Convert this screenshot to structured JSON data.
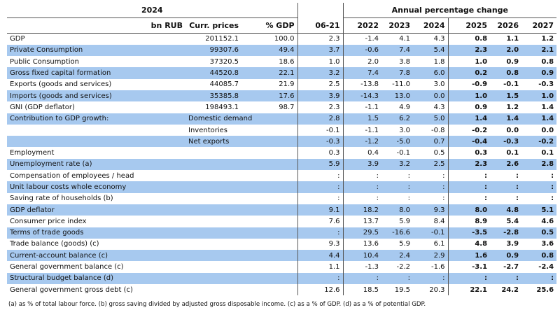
{
  "header": {
    "year": "2024",
    "group": "Annual percentage change",
    "columns": [
      "bn RUB",
      "Curr. prices",
      "% GDP",
      "06-21",
      "2022",
      "2023",
      "2024",
      "2025",
      "2026",
      "2027"
    ]
  },
  "rows": [
    {
      "label": "GDP",
      "level": [
        "201152.1",
        "100.0"
      ],
      "cells": [
        "2.3",
        "-1.4",
        "4.1",
        "4.3",
        "0.8",
        "1.1",
        "1.2"
      ]
    },
    {
      "label": "Private Consumption",
      "level": [
        "99307.6",
        "49.4"
      ],
      "cells": [
        "3.7",
        "-0.6",
        "7.4",
        "5.4",
        "2.3",
        "2.0",
        "2.1"
      ]
    },
    {
      "label": "Public Consumption",
      "level": [
        "37320.5",
        "18.6"
      ],
      "cells": [
        "1.0",
        "2.0",
        "3.8",
        "1.8",
        "1.0",
        "0.9",
        "0.8"
      ]
    },
    {
      "label": "Gross fixed capital formation",
      "level": [
        "44520.8",
        "22.1"
      ],
      "cells": [
        "3.2",
        "7.4",
        "7.8",
        "6.0",
        "0.2",
        "0.8",
        "0.9"
      ]
    },
    {
      "label": "Exports (goods and services)",
      "level": [
        "44085.7",
        "21.9"
      ],
      "cells": [
        "2.5",
        "-13.8",
        "-11.0",
        "3.0",
        "-0.9",
        "-0.1",
        "-0.3"
      ]
    },
    {
      "label": "Imports (goods and services)",
      "level": [
        "35385.8",
        "17.6"
      ],
      "cells": [
        "3.9",
        "-14.3",
        "13.0",
        "0.0",
        "1.0",
        "1.5",
        "1.0"
      ]
    },
    {
      "label": "GNI (GDP deflator)",
      "level": [
        "198493.1",
        "98.7"
      ],
      "cells": [
        "2.3",
        "-1.1",
        "4.9",
        "4.3",
        "0.9",
        "1.2",
        "1.4"
      ]
    },
    {
      "label": "Contribution to GDP growth:",
      "sublabel": "Domestic demand",
      "cells": [
        "2.8",
        "1.5",
        "6.2",
        "5.0",
        "1.4",
        "1.4",
        "1.4"
      ]
    },
    {
      "sublabel": "Inventories",
      "cells": [
        "-0.1",
        "-1.1",
        "3.0",
        "-0.8",
        "-0.2",
        "0.0",
        "0.0"
      ]
    },
    {
      "sublabel": "Net exports",
      "cells": [
        "-0.3",
        "-1.2",
        "-5.0",
        "0.7",
        "-0.4",
        "-0.3",
        "-0.2"
      ]
    },
    {
      "label": "Employment",
      "cells": [
        "0.3",
        "0.4",
        "-0.1",
        "0.5",
        "0.3",
        "0.1",
        "0.1"
      ]
    },
    {
      "label": "Unemployment rate (a)",
      "cells": [
        "5.9",
        "3.9",
        "3.2",
        "2.5",
        "2.3",
        "2.6",
        "2.8"
      ]
    },
    {
      "label": "Compensation of employees / head",
      "cells": [
        ":",
        ":",
        ":",
        ":",
        ":",
        ":",
        ":"
      ]
    },
    {
      "label": "Unit labour costs whole economy",
      "cells": [
        ":",
        ":",
        ":",
        ":",
        ":",
        ":",
        ":"
      ]
    },
    {
      "label": "Saving rate of households (b)",
      "cells": [
        ":",
        ":",
        ":",
        ":",
        ":",
        ":",
        ":"
      ]
    },
    {
      "label": "GDP deflator",
      "cells": [
        "9.1",
        "18.2",
        "8.0",
        "9.3",
        "8.0",
        "4.8",
        "5.1"
      ]
    },
    {
      "label": "Consumer price index",
      "cells": [
        "7.6",
        "13.7",
        "5.9",
        "8.4",
        "8.9",
        "5.4",
        "4.6"
      ]
    },
    {
      "label": "Terms of trade goods",
      "cells": [
        ":",
        "29.5",
        "-16.6",
        "-0.1",
        "-3.5",
        "-2.8",
        "0.5"
      ]
    },
    {
      "label": "Trade balance (goods) (c)",
      "cells": [
        "9.3",
        "13.6",
        "5.9",
        "6.1",
        "4.8",
        "3.9",
        "3.6"
      ]
    },
    {
      "label": "Current-account balance (c)",
      "cells": [
        "4.4",
        "10.4",
        "2.4",
        "2.9",
        "1.6",
        "0.9",
        "0.8"
      ]
    },
    {
      "label": "General government balance (c)",
      "cells": [
        "1.1",
        "-1.3",
        "-2.2",
        "-1.6",
        "-3.1",
        "-2.7",
        "-2.4"
      ]
    },
    {
      "label": "Structural budget balance (d)",
      "cells": [
        ":",
        ":",
        ":",
        ":",
        ":",
        ":",
        ":"
      ]
    },
    {
      "label": "General government gross debt (c)",
      "cells": [
        "12.6",
        "18.5",
        "19.5",
        "20.3",
        "22.1",
        "24.2",
        "25.6"
      ]
    }
  ],
  "footnote": "(a) as % of total labour force. (b) gross saving divided by adjusted gross disposable income. (c) as a % of GDP. (d) as a % of potential GDP."
}
